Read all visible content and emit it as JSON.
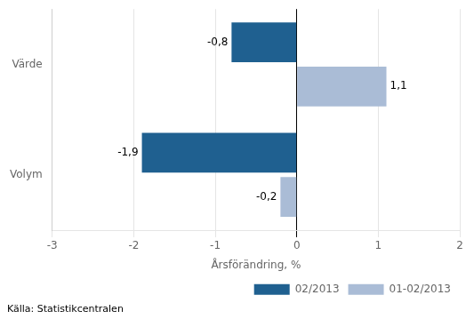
{
  "chart_data": {
    "type": "bar",
    "orientation": "horizontal",
    "categories": [
      "Värde",
      "Volym"
    ],
    "series": [
      {
        "name": "02/2013",
        "color": "#1F6090",
        "values": [
          -0.8,
          -1.9
        ],
        "value_labels": [
          "-0,8",
          "-1,9"
        ]
      },
      {
        "name": "01-02/2013",
        "color": "#AABCD6",
        "values": [
          1.1,
          -0.2
        ],
        "value_labels": [
          "1,1",
          "-0,2"
        ]
      }
    ],
    "xlabel": "Årsförändring, %",
    "xlim": [
      -3,
      2
    ],
    "xticks": [
      -3,
      -2,
      -1,
      0,
      1,
      2
    ],
    "grid": true,
    "legend": "lower right",
    "data_labels": true,
    "source": "Källa: Statistikcentralen"
  }
}
